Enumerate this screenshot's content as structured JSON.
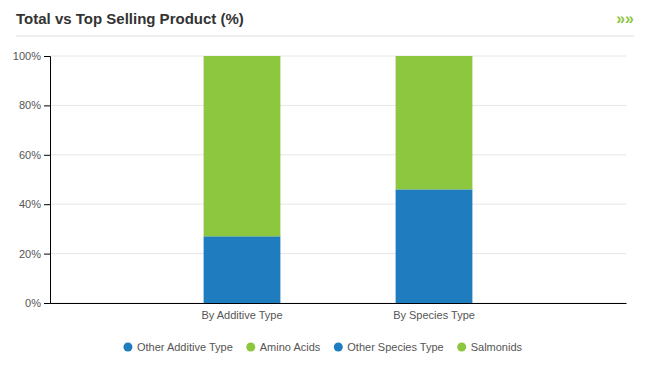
{
  "chart_data": {
    "type": "bar",
    "title": "Total vs Top Selling Product (%)",
    "annotations": [
      {
        "text": "»»",
        "color": "#8dc63f"
      }
    ],
    "categories": [
      "By Additive Type",
      "By Species Type"
    ],
    "stacked": true,
    "series": [
      {
        "name": "Other Additive Type",
        "color": "#1f7dbf",
        "values": [
          27,
          null
        ]
      },
      {
        "name": "Amino Acids",
        "color": "#8dc63f",
        "values": [
          73,
          null
        ]
      },
      {
        "name": "Other Species Type",
        "color": "#1f7dbf",
        "values": [
          null,
          46
        ]
      },
      {
        "name": "Salmonids",
        "color": "#8dc63f",
        "values": [
          null,
          54
        ]
      }
    ],
    "ylim": [
      0,
      100
    ],
    "yticks": [
      {
        "value": 0,
        "label": "0%"
      },
      {
        "value": 20,
        "label": "20%"
      },
      {
        "value": 40,
        "label": "40%"
      },
      {
        "value": 60,
        "label": "60%"
      },
      {
        "value": 80,
        "label": "80%"
      },
      {
        "value": 100,
        "label": "100%"
      }
    ],
    "grid": true,
    "legend": "bottom"
  }
}
